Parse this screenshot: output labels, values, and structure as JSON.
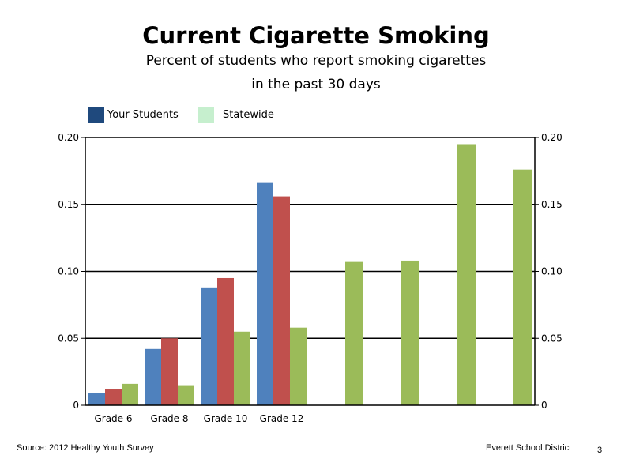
{
  "chart_data": {
    "type": "bar",
    "title": "Current Cigarette Smoking",
    "subtitle_line1": "Percent of students who report smoking cigarettes",
    "subtitle_line2": "in the past 30 days",
    "xlabel": "",
    "ylabel": "",
    "ylim": [
      0,
      0.2
    ],
    "yticks": [
      "0",
      "0.05",
      "0.10",
      "0.15",
      "0.20"
    ],
    "yticks_right": [
      "0",
      "0.05",
      "0.10",
      "0.15",
      "0.20"
    ],
    "grid": true,
    "legend_placement": "top-left",
    "legend": [
      {
        "label": "Your Students",
        "color": "#1f497d"
      },
      {
        "label": "Statewide",
        "color": "#c6efce"
      }
    ],
    "categories": [
      "Grade 6",
      "Grade 8",
      "Grade 10",
      "Grade 12"
    ],
    "grouped_series": [
      {
        "color": "#4f81bd",
        "values": [
          0.009,
          0.042,
          0.088,
          0.166
        ]
      },
      {
        "color": "#c0504d",
        "values": [
          0.012,
          0.05,
          0.095,
          0.156
        ]
      },
      {
        "color": "#9bbb59",
        "values": [
          0.016,
          0.015,
          0.055,
          0.058
        ]
      }
    ],
    "extra_bars": {
      "color": "#9bbb59",
      "values": [
        0.107,
        0.108,
        0.195,
        0.176
      ]
    }
  },
  "footer": {
    "source": "Source: 2012 Healthy Youth Survey",
    "org": "Everett School District",
    "page": "3"
  }
}
